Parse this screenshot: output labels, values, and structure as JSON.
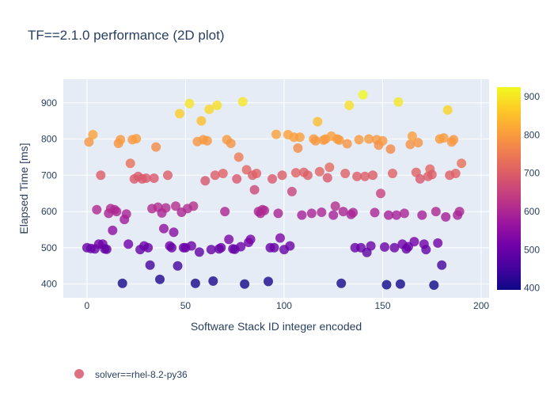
{
  "chart_data": {
    "type": "scatter",
    "title": "TF==2.1.0 performance (2D plot)",
    "xlabel": "Software Stack ID integer encoded",
    "ylabel": "Elapsed Time [ms]",
    "xlim": [
      -12,
      204
    ],
    "ylim": [
      362,
      965
    ],
    "x_ticks": [
      0,
      50,
      100,
      150,
      200
    ],
    "y_ticks": [
      400,
      500,
      600,
      700,
      800,
      900
    ],
    "x_tick_labels": [
      "0",
      "50",
      "100",
      "150",
      "200"
    ],
    "y_tick_labels": [
      "400",
      "500",
      "600",
      "700",
      "800",
      "900"
    ],
    "grid": true,
    "legend": {
      "position": "bottom-left",
      "entries": [
        "solver==rhel-8.2-py36"
      ]
    },
    "colorbar": {
      "range": [
        395,
        925
      ],
      "ticks": [
        400,
        500,
        600,
        700,
        800,
        900
      ],
      "tick_labels": [
        "400",
        "500",
        "600",
        "700",
        "800",
        "900"
      ],
      "colorscale": [
        "#0d0887",
        "#46039f",
        "#7201a8",
        "#9c179e",
        "#bd3786",
        "#d8576b",
        "#ed7953",
        "#fb9f3a",
        "#fdca26",
        "#f0f921"
      ]
    },
    "series": [
      {
        "name": "solver==rhel-8.2-py36",
        "points": [
          [
            0,
            500
          ],
          [
            1,
            792
          ],
          [
            2,
            498
          ],
          [
            3,
            812
          ],
          [
            4,
            497
          ],
          [
            5,
            605
          ],
          [
            6,
            510
          ],
          [
            7,
            700
          ],
          [
            8,
            510
          ],
          [
            9,
            497
          ],
          [
            10,
            496
          ],
          [
            11,
            595
          ],
          [
            12,
            608
          ],
          [
            13,
            548
          ],
          [
            14,
            605
          ],
          [
            15,
            600
          ],
          [
            16,
            788
          ],
          [
            17,
            798
          ],
          [
            18,
            402
          ],
          [
            19,
            578
          ],
          [
            20,
            593
          ],
          [
            21,
            510
          ],
          [
            22,
            733
          ],
          [
            23,
            798
          ],
          [
            24,
            690
          ],
          [
            25,
            801
          ],
          [
            26,
            697
          ],
          [
            27,
            495
          ],
          [
            28,
            690
          ],
          [
            29,
            505
          ],
          [
            30,
            692
          ],
          [
            31,
            500
          ],
          [
            32,
            452
          ],
          [
            33,
            608
          ],
          [
            34,
            692
          ],
          [
            35,
            778
          ],
          [
            36,
            612
          ],
          [
            37,
            413
          ],
          [
            38,
            596
          ],
          [
            39,
            553
          ],
          [
            40,
            610
          ],
          [
            41,
            700
          ],
          [
            42,
            505
          ],
          [
            43,
            500
          ],
          [
            44,
            543
          ],
          [
            45,
            615
          ],
          [
            46,
            450
          ],
          [
            47,
            870
          ],
          [
            48,
            598
          ],
          [
            49,
            500
          ],
          [
            50,
            500
          ],
          [
            51,
            608
          ],
          [
            52,
            898
          ],
          [
            53,
            505
          ],
          [
            54,
            615
          ],
          [
            55,
            402
          ],
          [
            56,
            793
          ],
          [
            57,
            488
          ],
          [
            58,
            850
          ],
          [
            59,
            798
          ],
          [
            60,
            685
          ],
          [
            61,
            795
          ],
          [
            62,
            882
          ],
          [
            63,
            495
          ],
          [
            64,
            408
          ],
          [
            65,
            700
          ],
          [
            66,
            893
          ],
          [
            67,
            497
          ],
          [
            68,
            500
          ],
          [
            69,
            705
          ],
          [
            70,
            600
          ],
          [
            71,
            798
          ],
          [
            72,
            523
          ],
          [
            73,
            788
          ],
          [
            74,
            497
          ],
          [
            75,
            496
          ],
          [
            76,
            690
          ],
          [
            77,
            750
          ],
          [
            78,
            503
          ],
          [
            79,
            903
          ],
          [
            80,
            400
          ],
          [
            81,
            715
          ],
          [
            82,
            515
          ],
          [
            83,
            523
          ],
          [
            84,
            700
          ],
          [
            85,
            660
          ],
          [
            86,
            705
          ],
          [
            87,
            600
          ],
          [
            88,
            595
          ],
          [
            89,
            605
          ],
          [
            90,
            603
          ],
          [
            92,
            407
          ],
          [
            93,
            500
          ],
          [
            94,
            690
          ],
          [
            95,
            500
          ],
          [
            96,
            813
          ],
          [
            97,
            595
          ],
          [
            98,
            527
          ],
          [
            99,
            700
          ],
          [
            100,
            495
          ],
          [
            102,
            812
          ],
          [
            103,
            505
          ],
          [
            104,
            655
          ],
          [
            105,
            805
          ],
          [
            106,
            707
          ],
          [
            107,
            775
          ],
          [
            108,
            805
          ],
          [
            109,
            590
          ],
          [
            110,
            708
          ],
          [
            112,
            700
          ],
          [
            114,
            595
          ],
          [
            115,
            800
          ],
          [
            116,
            795
          ],
          [
            117,
            848
          ],
          [
            118,
            710
          ],
          [
            119,
            598
          ],
          [
            120,
            797
          ],
          [
            121,
            800
          ],
          [
            122,
            693
          ],
          [
            123,
            722
          ],
          [
            124,
            808
          ],
          [
            125,
            590
          ],
          [
            126,
            615
          ],
          [
            127,
            800
          ],
          [
            128,
            797
          ],
          [
            129,
            402
          ],
          [
            130,
            600
          ],
          [
            131,
            705
          ],
          [
            132,
            787
          ],
          [
            133,
            893
          ],
          [
            134,
            592
          ],
          [
            135,
            597
          ],
          [
            136,
            500
          ],
          [
            137,
            697
          ],
          [
            138,
            798
          ],
          [
            139,
            500
          ],
          [
            140,
            922
          ],
          [
            141,
            697
          ],
          [
            142,
            487
          ],
          [
            143,
            800
          ],
          [
            144,
            505
          ],
          [
            145,
            700
          ],
          [
            146,
            597
          ],
          [
            147,
            798
          ],
          [
            148,
            783
          ],
          [
            149,
            650
          ],
          [
            150,
            795
          ],
          [
            151,
            502
          ],
          [
            152,
            398
          ],
          [
            153,
            590
          ],
          [
            154,
            772
          ],
          [
            155,
            705
          ],
          [
            156,
            500
          ],
          [
            157,
            590
          ],
          [
            158,
            902
          ],
          [
            159,
            400
          ],
          [
            160,
            510
          ],
          [
            161,
            595
          ],
          [
            162,
            497
          ],
          [
            163,
            503
          ],
          [
            164,
            785
          ],
          [
            165,
            808
          ],
          [
            166,
            517
          ],
          [
            167,
            708
          ],
          [
            168,
            790
          ],
          [
            169,
            690
          ],
          [
            170,
            590
          ],
          [
            171,
            510
          ],
          [
            172,
            495
          ],
          [
            173,
            697
          ],
          [
            174,
            717
          ],
          [
            175,
            702
          ],
          [
            176,
            397
          ],
          [
            177,
            600
          ],
          [
            178,
            513
          ],
          [
            179,
            800
          ],
          [
            180,
            452
          ],
          [
            181,
            803
          ],
          [
            182,
            585
          ],
          [
            183,
            880
          ],
          [
            184,
            700
          ],
          [
            185,
            792
          ],
          [
            186,
            798
          ],
          [
            187,
            705
          ],
          [
            188,
            590
          ],
          [
            189,
            600
          ],
          [
            190,
            733
          ]
        ]
      }
    ]
  }
}
